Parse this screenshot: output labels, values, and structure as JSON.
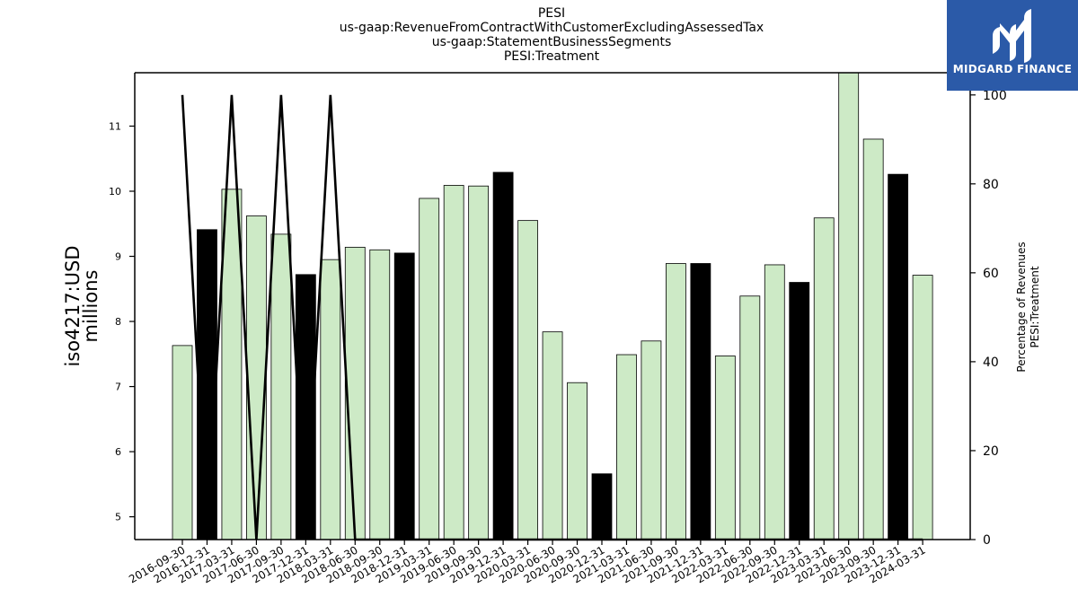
{
  "title_lines": [
    "PESI",
    "us-gaap:RevenueFromContractWithCustomerExcludingAssessedTax",
    "us-gaap:StatementBusinessSegments",
    "PESI:Treatment"
  ],
  "logo": {
    "text": "MIDGARD FINANCE",
    "color": "#2b5aa8"
  },
  "chart_data": {
    "type": "bar",
    "ylabel_lines": [
      "iso4217:USD",
      "millions"
    ],
    "y2label_lines": [
      "Percentage of Revenues",
      "PESI:Treatment"
    ],
    "ylim": [
      4.65,
      11.82
    ],
    "yticks": [
      5,
      6,
      7,
      8,
      9,
      10,
      11
    ],
    "y2lim": [
      0,
      105
    ],
    "y2ticks": [
      0,
      20,
      40,
      60,
      80,
      100
    ],
    "grid": false,
    "colors": {
      "light": "#cdeac6",
      "dark": "#000000",
      "edge": "#000000",
      "line": "#000000"
    },
    "categories": [
      "2016-09-30",
      "2016-12-31",
      "2017-03-31",
      "2017-06-30",
      "2017-09-30",
      "2017-12-31",
      "2018-03-31",
      "2018-06-30",
      "2018-09-30",
      "2018-12-31",
      "2019-03-31",
      "2019-06-30",
      "2019-09-30",
      "2019-12-31",
      "2020-03-31",
      "2020-06-30",
      "2020-09-30",
      "2020-12-31",
      "2021-03-31",
      "2021-06-30",
      "2021-09-30",
      "2021-12-31",
      "2022-03-31",
      "2022-06-30",
      "2022-09-30",
      "2022-12-31",
      "2023-03-31",
      "2023-06-30",
      "2023-09-30",
      "2023-12-31",
      "2024-03-31"
    ],
    "series": [
      {
        "values": [
          7.63,
          9.41,
          10.03,
          9.62,
          9.34,
          8.72,
          8.95,
          9.14,
          9.1,
          9.05,
          9.89,
          10.09,
          10.08,
          10.29,
          9.55,
          7.84,
          7.06,
          5.66,
          7.49,
          7.7,
          8.89,
          8.89,
          7.47,
          8.39,
          8.87,
          8.6,
          9.59,
          11.82,
          10.8,
          10.26,
          8.71
        ],
        "highlight": [
          false,
          true,
          false,
          false,
          false,
          true,
          false,
          false,
          false,
          true,
          false,
          false,
          false,
          true,
          false,
          false,
          false,
          true,
          false,
          false,
          false,
          true,
          false,
          false,
          false,
          true,
          false,
          false,
          false,
          true,
          false
        ]
      }
    ],
    "percentage_line": [
      100,
      0,
      100,
      0,
      100,
      0,
      100,
      0,
      0,
      0,
      0,
      0,
      0,
      0,
      0,
      0,
      0,
      0,
      0,
      0,
      0,
      0,
      0,
      0,
      0,
      0,
      0,
      0,
      0,
      0,
      0
    ]
  }
}
